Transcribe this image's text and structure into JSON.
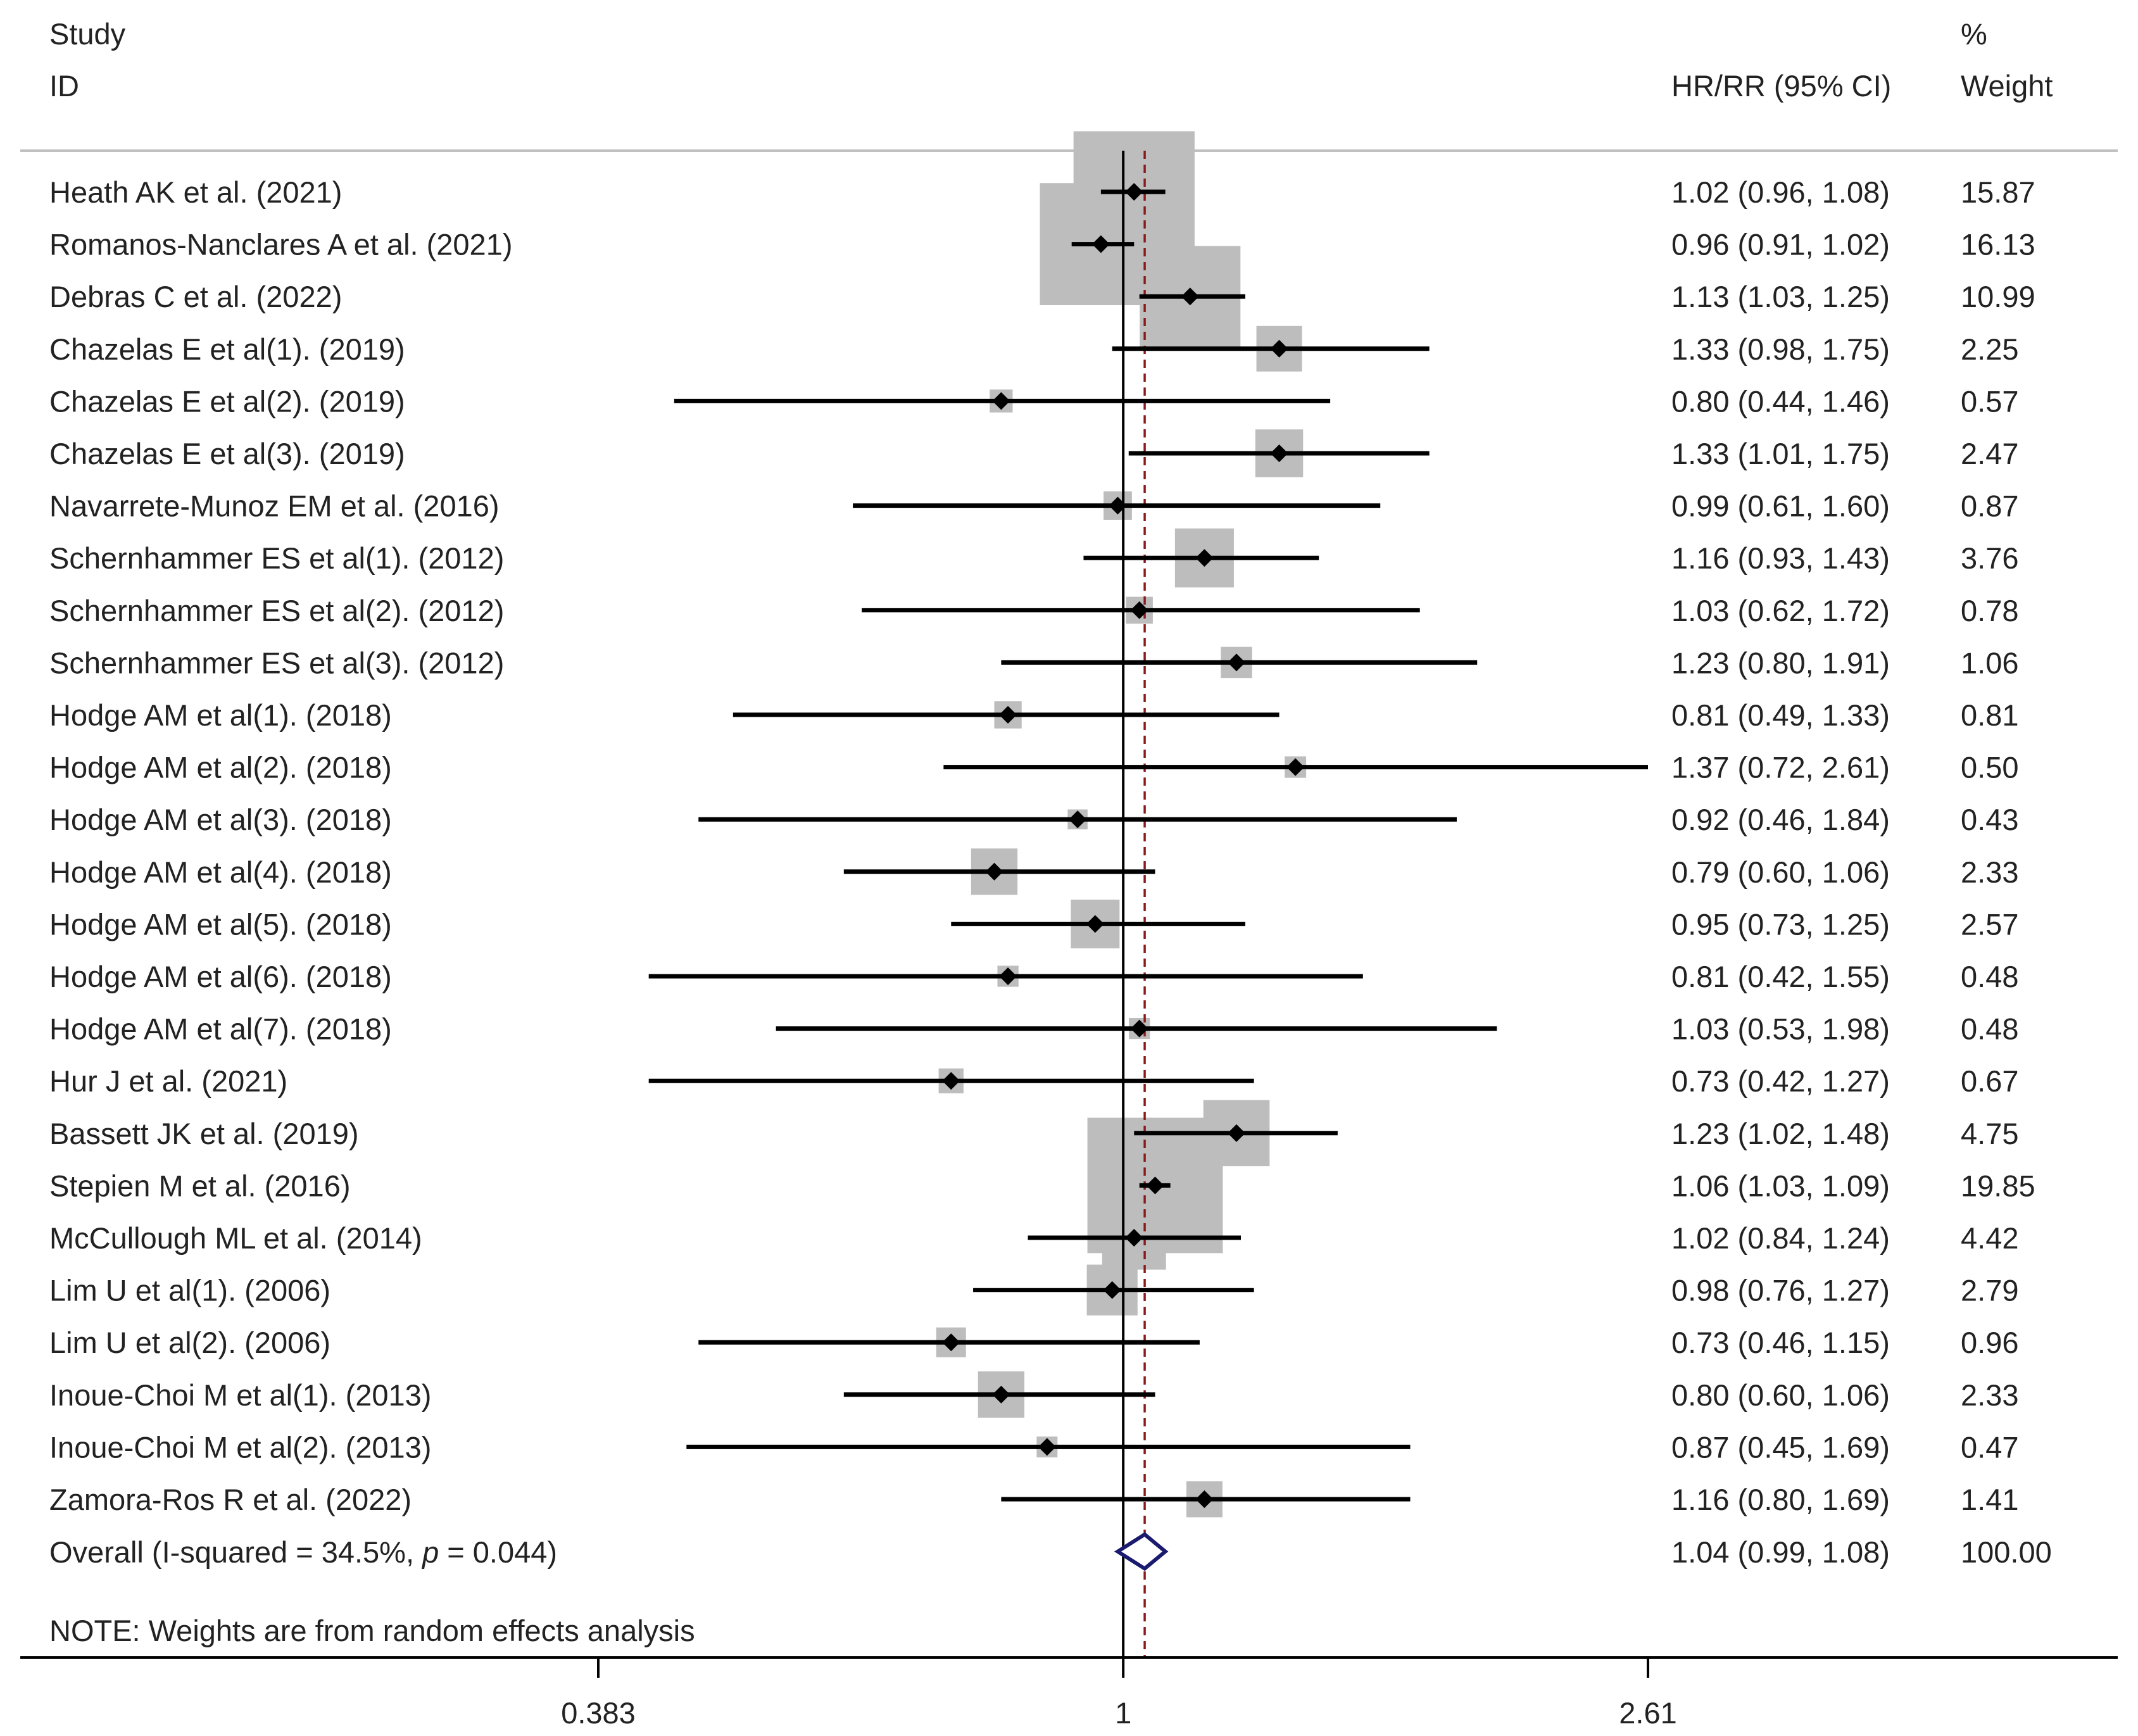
{
  "chart_data": {
    "type": "forest",
    "header": {
      "study_line1": "Study",
      "study_line2": "ID",
      "effect_label": "HR/RR (95% CI)",
      "weight_line1": "%",
      "weight_line2": "Weight"
    },
    "studies": [
      {
        "label": "Heath AK et al. (2021)",
        "est": 1.02,
        "lo": 0.96,
        "hi": 1.08,
        "ci_text": "1.02 (0.96, 1.08)",
        "weight": 15.87,
        "weight_text": "15.87"
      },
      {
        "label": "Romanos-Nanclares A et al. (2021)",
        "est": 0.96,
        "lo": 0.91,
        "hi": 1.02,
        "ci_text": "0.96 (0.91, 1.02)",
        "weight": 16.13,
        "weight_text": "16.13"
      },
      {
        "label": "Debras C et al. (2022)",
        "est": 1.13,
        "lo": 1.03,
        "hi": 1.25,
        "ci_text": "1.13 (1.03, 1.25)",
        "weight": 10.99,
        "weight_text": "10.99"
      },
      {
        "label": "Chazelas E et al(1). (2019)",
        "est": 1.33,
        "lo": 0.98,
        "hi": 1.75,
        "ci_text": "1.33 (0.98, 1.75)",
        "weight": 2.25,
        "weight_text": "2.25"
      },
      {
        "label": "Chazelas E et al(2). (2019)",
        "est": 0.8,
        "lo": 0.44,
        "hi": 1.46,
        "ci_text": "0.80 (0.44, 1.46)",
        "weight": 0.57,
        "weight_text": "0.57"
      },
      {
        "label": "Chazelas E et al(3). (2019)",
        "est": 1.33,
        "lo": 1.01,
        "hi": 1.75,
        "ci_text": "1.33 (1.01, 1.75)",
        "weight": 2.47,
        "weight_text": "2.47"
      },
      {
        "label": "Navarrete-Munoz EM et al. (2016)",
        "est": 0.99,
        "lo": 0.61,
        "hi": 1.6,
        "ci_text": "0.99 (0.61, 1.60)",
        "weight": 0.87,
        "weight_text": "0.87"
      },
      {
        "label": "Schernhammer ES et al(1). (2012)",
        "est": 1.16,
        "lo": 0.93,
        "hi": 1.43,
        "ci_text": "1.16 (0.93, 1.43)",
        "weight": 3.76,
        "weight_text": "3.76"
      },
      {
        "label": "Schernhammer ES et al(2). (2012)",
        "est": 1.03,
        "lo": 0.62,
        "hi": 1.72,
        "ci_text": "1.03 (0.62, 1.72)",
        "weight": 0.78,
        "weight_text": "0.78"
      },
      {
        "label": "Schernhammer ES et al(3). (2012)",
        "est": 1.23,
        "lo": 0.8,
        "hi": 1.91,
        "ci_text": "1.23 (0.80, 1.91)",
        "weight": 1.06,
        "weight_text": "1.06"
      },
      {
        "label": "Hodge AM et al(1). (2018)",
        "est": 0.81,
        "lo": 0.49,
        "hi": 1.33,
        "ci_text": "0.81 (0.49, 1.33)",
        "weight": 0.81,
        "weight_text": "0.81"
      },
      {
        "label": "Hodge AM et al(2). (2018)",
        "est": 1.37,
        "lo": 0.72,
        "hi": 2.61,
        "ci_text": "1.37 (0.72, 2.61)",
        "weight": 0.5,
        "weight_text": "0.50"
      },
      {
        "label": "Hodge AM et al(3). (2018)",
        "est": 0.92,
        "lo": 0.46,
        "hi": 1.84,
        "ci_text": "0.92 (0.46, 1.84)",
        "weight": 0.43,
        "weight_text": "0.43"
      },
      {
        "label": "Hodge AM et al(4). (2018)",
        "est": 0.79,
        "lo": 0.6,
        "hi": 1.06,
        "ci_text": "0.79 (0.60, 1.06)",
        "weight": 2.33,
        "weight_text": "2.33"
      },
      {
        "label": "Hodge AM et al(5). (2018)",
        "est": 0.95,
        "lo": 0.73,
        "hi": 1.25,
        "ci_text": "0.95 (0.73, 1.25)",
        "weight": 2.57,
        "weight_text": "2.57"
      },
      {
        "label": "Hodge AM et al(6). (2018)",
        "est": 0.81,
        "lo": 0.42,
        "hi": 1.55,
        "ci_text": "0.81 (0.42, 1.55)",
        "weight": 0.48,
        "weight_text": "0.48"
      },
      {
        "label": "Hodge AM et al(7). (2018)",
        "est": 1.03,
        "lo": 0.53,
        "hi": 1.98,
        "ci_text": "1.03 (0.53, 1.98)",
        "weight": 0.48,
        "weight_text": "0.48"
      },
      {
        "label": "Hur J et al. (2021)",
        "est": 0.73,
        "lo": 0.42,
        "hi": 1.27,
        "ci_text": "0.73 (0.42, 1.27)",
        "weight": 0.67,
        "weight_text": "0.67"
      },
      {
        "label": "Bassett JK et al. (2019)",
        "est": 1.23,
        "lo": 1.02,
        "hi": 1.48,
        "ci_text": "1.23 (1.02, 1.48)",
        "weight": 4.75,
        "weight_text": "4.75"
      },
      {
        "label": "Stepien M et al. (2016)",
        "est": 1.06,
        "lo": 1.03,
        "hi": 1.09,
        "ci_text": "1.06 (1.03, 1.09)",
        "weight": 19.85,
        "weight_text": "19.85"
      },
      {
        "label": "McCullough ML et al. (2014)",
        "est": 1.02,
        "lo": 0.84,
        "hi": 1.24,
        "ci_text": "1.02 (0.84, 1.24)",
        "weight": 4.42,
        "weight_text": "4.42"
      },
      {
        "label": "Lim U et al(1). (2006)",
        "est": 0.98,
        "lo": 0.76,
        "hi": 1.27,
        "ci_text": "0.98 (0.76, 1.27)",
        "weight": 2.79,
        "weight_text": "2.79"
      },
      {
        "label": "Lim U et al(2). (2006)",
        "est": 0.73,
        "lo": 0.46,
        "hi": 1.15,
        "ci_text": "0.73 (0.46, 1.15)",
        "weight": 0.96,
        "weight_text": "0.96"
      },
      {
        "label": "Inoue-Choi M et al(1). (2013)",
        "est": 0.8,
        "lo": 0.6,
        "hi": 1.06,
        "ci_text": "0.80 (0.60, 1.06)",
        "weight": 2.33,
        "weight_text": "2.33"
      },
      {
        "label": "Inoue-Choi M et al(2). (2013)",
        "est": 0.87,
        "lo": 0.45,
        "hi": 1.69,
        "ci_text": "0.87 (0.45, 1.69)",
        "weight": 0.47,
        "weight_text": "0.47"
      },
      {
        "label": "Zamora-Ros R et al. (2022)",
        "est": 1.16,
        "lo": 0.8,
        "hi": 1.69,
        "ci_text": "1.16 (0.80, 1.69)",
        "weight": 1.41,
        "weight_text": "1.41"
      }
    ],
    "overall": {
      "label_prefix": "Overall  (I-squared = 34.5%, ",
      "label_p": "p",
      "label_suffix": " = 0.044)",
      "est": 1.04,
      "lo": 0.99,
      "hi": 1.08,
      "ci_text": "1.04 (0.99, 1.08)",
      "weight_text": "100.00"
    },
    "note": "NOTE: Weights are from random effects analysis",
    "axis": {
      "scale": "log",
      "min": 0.383,
      "max": 2.61,
      "null_value": 1,
      "ticks": [
        {
          "value": 0.383,
          "label": "0.383"
        },
        {
          "value": 1,
          "label": "1"
        },
        {
          "value": 2.61,
          "label": "2.61"
        }
      ]
    },
    "colors": {
      "point": "#000000",
      "ci_line": "#000000",
      "weight_box": "#bdbdbd",
      "overall_diamond": "#1a1a6e",
      "overall_line": "#8b1a1a",
      "separator": "#c0c0c0"
    }
  }
}
